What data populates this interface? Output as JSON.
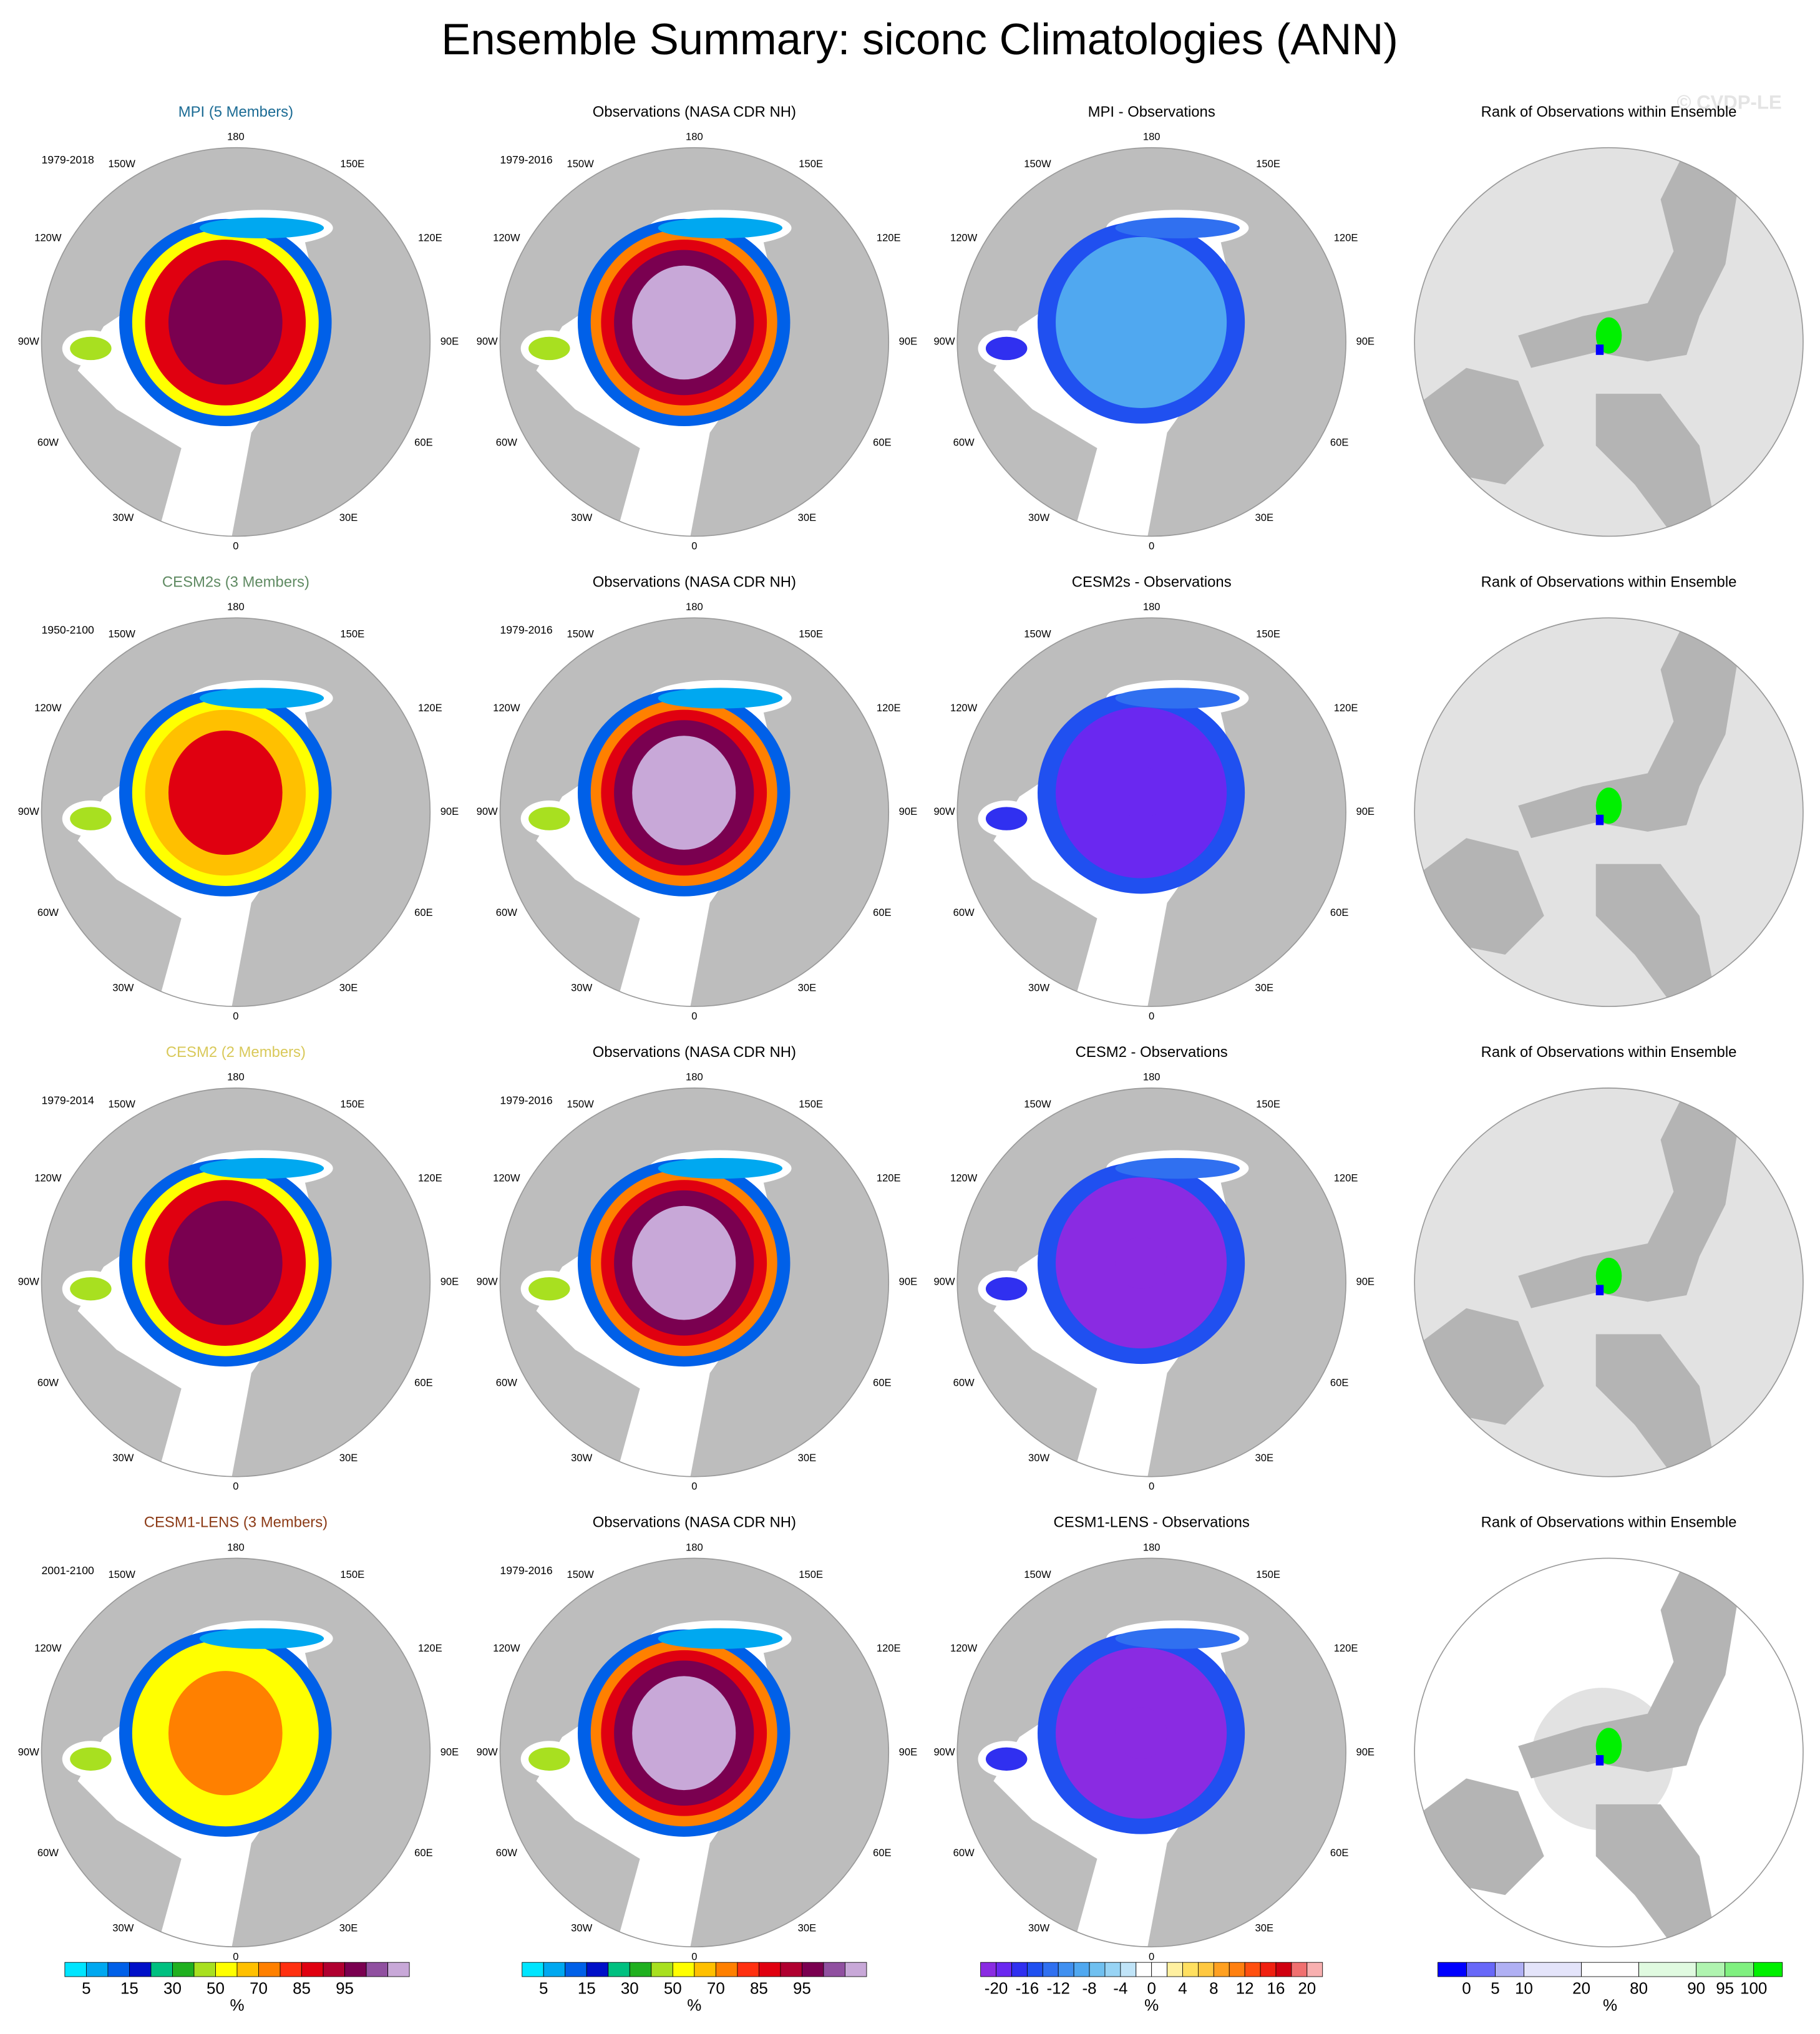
{
  "title": "Ensemble Summary: siconc Climatologies (ANN)",
  "watermark": "© CVDP-LE",
  "longitude_labels": [
    "180",
    "150W",
    "150E",
    "120W",
    "120E",
    "90W",
    "90E",
    "60W",
    "60E",
    "30W",
    "30E",
    "0"
  ],
  "rows": [
    {
      "model": {
        "title": "MPI (5 Members)",
        "color": "#1b6b94",
        "period": "1979-2018"
      },
      "observations": {
        "title": "Observations (NASA CDR NH)",
        "period": "1979-2016"
      },
      "difference": {
        "title": "MPI - Observations"
      },
      "rank": {
        "title": "Rank of Observations within Ensemble"
      }
    },
    {
      "model": {
        "title": "CESM2s (3 Members)",
        "color": "#5f8a62",
        "period": "1950-2100"
      },
      "observations": {
        "title": "Observations (NASA CDR NH)",
        "period": "1979-2016"
      },
      "difference": {
        "title": "CESM2s - Observations"
      },
      "rank": {
        "title": "Rank of Observations within Ensemble"
      }
    },
    {
      "model": {
        "title": "CESM2 (2 Members)",
        "color": "#d9c95a",
        "period": "1979-2014"
      },
      "observations": {
        "title": "Observations (NASA CDR NH)",
        "period": "1979-2016"
      },
      "difference": {
        "title": "CESM2 - Observations"
      },
      "rank": {
        "title": "Rank of Observations within Ensemble"
      }
    },
    {
      "model": {
        "title": "CESM1-LENS (3 Members)",
        "color": "#8c3b17",
        "period": "2001-2100"
      },
      "observations": {
        "title": "Observations (NASA CDR NH)",
        "period": "1979-2016"
      },
      "difference": {
        "title": "CESM1-LENS - Observations"
      },
      "rank": {
        "title": "Rank of Observations within Ensemble"
      }
    }
  ],
  "colorbars": [
    {
      "colors": [
        "#00e5ff",
        "#00a8f0",
        "#0060e8",
        "#0010c8",
        "#00c080",
        "#20b020",
        "#a8e020",
        "#ffff00",
        "#ffc000",
        "#ff8000",
        "#ff3010",
        "#e00010",
        "#b00030",
        "#7a0050",
        "#9050a0",
        "#c8a8d8"
      ],
      "labels": [
        5,
        15,
        30,
        50,
        70,
        85,
        95
      ],
      "units": "%"
    },
    {
      "colors": [
        "#00e5ff",
        "#00a8f0",
        "#0060e8",
        "#0010c8",
        "#00c080",
        "#20b020",
        "#a8e020",
        "#ffff00",
        "#ffc000",
        "#ff8000",
        "#ff3010",
        "#e00010",
        "#b00030",
        "#7a0050",
        "#9050a0",
        "#c8a8d8"
      ],
      "labels": [
        5,
        15,
        30,
        50,
        70,
        85,
        95
      ],
      "units": "%"
    },
    {
      "colors": [
        "#8a2be2",
        "#6a28f0",
        "#3030f0",
        "#2050f0",
        "#3070f0",
        "#4090f0",
        "#50a8f0",
        "#70c0f0",
        "#98d4f5",
        "#c0e4f8",
        "#ffffff",
        "#ffffff",
        "#fff0a0",
        "#ffe060",
        "#ffc840",
        "#ffa020",
        "#ff8010",
        "#ff5010",
        "#f02010",
        "#d00010",
        "#f07070",
        "#f8b0b0"
      ],
      "labels": [
        -20,
        -16,
        -12,
        -8,
        -4,
        0,
        4,
        8,
        12,
        16,
        20
      ],
      "units": "%"
    },
    {
      "colors": [
        "#0000ff",
        "#6868f8",
        "#b0b0f4",
        "#e4e4fa",
        "#ffffff",
        "#e0fae0",
        "#b0f4b0",
        "#80f080",
        "#00f000"
      ],
      "labels": [
        0,
        5,
        10,
        20,
        80,
        90,
        95,
        100
      ],
      "units": "%"
    }
  ]
}
